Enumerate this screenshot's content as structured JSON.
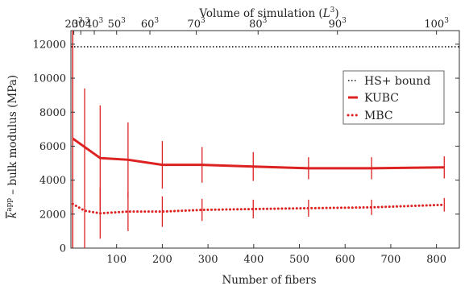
{
  "chart_data": {
    "type": "line",
    "top_axis": {
      "label_main": "Volume of simulation (",
      "label_var": "L",
      "label_exp": "3",
      "label_close": ")",
      "ticks": [
        {
          "x": 20,
          "base": "20",
          "exp": "3"
        },
        {
          "x": 30,
          "base": "30",
          "exp": "3"
        },
        {
          "x": 40,
          "base": "40",
          "exp": "3"
        },
        {
          "x": 50,
          "base": "50",
          "exp": "3"
        },
        {
          "x": 60,
          "base": "60",
          "exp": "3"
        },
        {
          "x": 70,
          "base": "70",
          "exp": "3"
        },
        {
          "x": 80,
          "base": "80",
          "exp": "3"
        },
        {
          "x": 90,
          "base": "90",
          "exp": "3"
        },
        {
          "x": 100,
          "base": "100",
          "exp": "3"
        }
      ]
    },
    "xlabel": "Number of fibers",
    "ylabel_sym": "k",
    "ylabel_sup": "app",
    "ylabel_rest": " – bulk modulus (MPa)",
    "xlim": [
      0,
      850
    ],
    "ylim": [
      0,
      12800
    ],
    "xticks": [
      100,
      200,
      300,
      400,
      500,
      600,
      700,
      800
    ],
    "yticks": [
      0,
      2000,
      4000,
      6000,
      8000,
      10000,
      12000
    ],
    "legend_position": "top-right",
    "series": [
      {
        "name": "HS+ bound",
        "style": "dotted",
        "color": "#333333",
        "x": [
          0,
          850
        ],
        "y": [
          11850,
          11850
        ]
      },
      {
        "name": "KUBC",
        "style": "solid",
        "color": "#dd2222",
        "x": [
          4,
          64,
          125,
          200,
          287,
          399,
          520,
          658,
          817
        ],
        "y": [
          6450,
          5300,
          5200,
          4900,
          4900,
          4800,
          4700,
          4700,
          4750
        ],
        "err": [
          6550,
          3100,
          2200,
          1400,
          1050,
          850,
          650,
          650,
          650
        ]
      },
      {
        "name": "MBC",
        "style": "dotted",
        "color": "#dd2222",
        "x": [
          4,
          30,
          64,
          125,
          200,
          287,
          399,
          520,
          658,
          817
        ],
        "y": [
          2600,
          2200,
          2050,
          2150,
          2150,
          2250,
          2300,
          2350,
          2400,
          2550
        ],
        "err": [
          10200,
          7200,
          1500,
          1150,
          900,
          650,
          550,
          500,
          450,
          400
        ]
      }
    ]
  }
}
